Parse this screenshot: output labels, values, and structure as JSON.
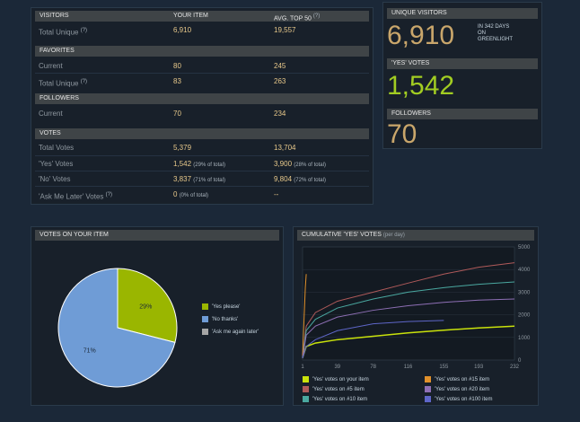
{
  "stats": {
    "visitors": {
      "header": "VISITORS",
      "col_item": "YOUR ITEM",
      "col_avg": "AVG. TOP 50",
      "col_avg_sup": "(?)"
    },
    "total_unique": {
      "label": "Total Unique",
      "sup": "(?)",
      "item": "6,910",
      "avg": "19,557"
    },
    "favorites": {
      "header": "FAVORITES",
      "current": {
        "label": "Current",
        "item": "80",
        "avg": "245"
      },
      "total": {
        "label": "Total Unique",
        "sup": "(?)",
        "item": "83",
        "avg": "263"
      }
    },
    "followers": {
      "header": "FOLLOWERS",
      "current": {
        "label": "Current",
        "item": "70",
        "avg": "234"
      }
    },
    "votes": {
      "header": "VOTES",
      "total": {
        "label": "Total Votes",
        "item": "5,379",
        "avg": "13,704"
      },
      "yes": {
        "label": "'Yes' Votes",
        "item": "1,542",
        "item_sub": "(29% of total)",
        "avg": "3,900",
        "avg_sub": "(28% of total)"
      },
      "no": {
        "label": "'No' Votes",
        "item": "3,837",
        "item_sub": "(71% of total)",
        "avg": "9,804",
        "avg_sub": "(72% of total)"
      },
      "later": {
        "label": "'Ask Me Later' Votes",
        "sup": "(?)",
        "item": "0",
        "item_sub": "(0% of total)",
        "avg": "--"
      }
    }
  },
  "summary": {
    "unique_header": "UNIQUE VISITORS",
    "unique_value": "6,910",
    "unique_note_1": "IN 342 DAYS",
    "unique_note_2": "ON",
    "unique_note_3": "GREENLIGHT",
    "yes_header": "'YES' VOTES",
    "yes_value": "1,542",
    "followers_header": "FOLLOWERS",
    "followers_value": "70"
  },
  "pie_panel": {
    "header": "VOTES ON YOUR ITEM"
  },
  "line_panel": {
    "header": "CUMULATIVE 'YES' VOTES",
    "header_sub": "(per day)"
  },
  "colors": {
    "yes": "#9ab600",
    "no": "#6f9cd6",
    "later": "#a5a5a5",
    "accent_value": "#c9a66b",
    "yes_value": "#a2cd22"
  },
  "chart_data": [
    {
      "type": "pie",
      "title": "",
      "categories": [
        "'Yes please'",
        "'No thanks'",
        "'Ask me again later'"
      ],
      "values": [
        29,
        71,
        0
      ],
      "labels": [
        "29%",
        "71%",
        ""
      ],
      "colors": [
        "#9ab600",
        "#6f9cd6",
        "#a5a5a5"
      ],
      "legend": "right"
    },
    {
      "type": "line",
      "title": "",
      "xlabel": "",
      "ylabel": "",
      "xlim": [
        1,
        232
      ],
      "ylim": [
        0,
        5000
      ],
      "x_ticks": [
        "1",
        "39",
        "78",
        "116",
        "155",
        "193",
        "232"
      ],
      "y_ticks": [
        "0",
        "1000",
        "2000",
        "3000",
        "4000",
        "5000"
      ],
      "y_axis_side": "right",
      "grid": true,
      "legend": "bottom",
      "series": [
        {
          "name": "'Yes' votes on your item",
          "color": "#c9e20b",
          "x": [
            1,
            5,
            15,
            39,
            78,
            116,
            155,
            193,
            232
          ],
          "y": [
            100,
            600,
            750,
            900,
            1050,
            1200,
            1320,
            1420,
            1500
          ]
        },
        {
          "name": "'Yes' votes on #5 item",
          "color": "#b05a5a",
          "x": [
            1,
            5,
            15,
            39,
            78,
            116,
            155,
            193,
            232
          ],
          "y": [
            150,
            1500,
            2100,
            2600,
            3000,
            3400,
            3800,
            4100,
            4300
          ]
        },
        {
          "name": "'Yes' votes on #10 item",
          "color": "#4aa8a0",
          "x": [
            1,
            5,
            15,
            39,
            78,
            116,
            155,
            193,
            232
          ],
          "y": [
            120,
            1300,
            1800,
            2300,
            2700,
            3000,
            3200,
            3350,
            3450
          ]
        },
        {
          "name": "'Yes' votes on #15 item",
          "color": "#e0902b",
          "x": [
            1,
            2,
            3,
            4,
            5
          ],
          "y": [
            200,
            1200,
            2200,
            3200,
            3800
          ]
        },
        {
          "name": "'Yes' votes on #20 item",
          "color": "#8e6fb5",
          "x": [
            1,
            5,
            15,
            39,
            78,
            116,
            155,
            193,
            232
          ],
          "y": [
            100,
            1100,
            1500,
            1900,
            2200,
            2400,
            2550,
            2650,
            2700
          ]
        },
        {
          "name": "'Yes' votes on #100 item",
          "color": "#5e66c8",
          "x": [
            1,
            5,
            15,
            39,
            78,
            116,
            155
          ],
          "y": [
            80,
            600,
            900,
            1300,
            1600,
            1700,
            1750
          ]
        }
      ]
    }
  ]
}
